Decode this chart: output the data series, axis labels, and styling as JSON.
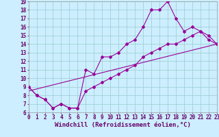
{
  "xlabel": "Windchill (Refroidissement éolien,°C)",
  "bg_color": "#cceeff",
  "grid_color": "#99cccc",
  "line_color": "#990099",
  "xmin": 0,
  "xmax": 23,
  "ymin": 6,
  "ymax": 19,
  "line1_x": [
    0,
    1,
    2,
    3,
    4,
    5,
    6,
    7,
    8,
    9,
    10,
    11,
    12,
    13,
    14,
    15,
    16,
    17,
    18,
    19,
    20,
    21,
    22,
    23
  ],
  "line1_y": [
    9,
    8,
    7.5,
    6.5,
    7,
    6.5,
    6.5,
    11,
    10.5,
    12.5,
    12.5,
    13,
    14,
    14.5,
    16,
    18,
    18,
    19,
    17,
    15.5,
    16,
    15.5,
    15,
    14
  ],
  "line2_x": [
    0,
    1,
    2,
    3,
    4,
    5,
    6,
    7,
    8,
    9,
    10,
    11,
    12,
    13,
    14,
    15,
    16,
    17,
    18,
    19,
    20,
    21,
    22,
    23
  ],
  "line2_y": [
    9,
    8,
    7.5,
    6.5,
    7,
    6.5,
    6.5,
    8.5,
    9.0,
    9.5,
    10,
    10.5,
    11,
    11.5,
    12.5,
    13,
    13.5,
    14,
    14,
    14.5,
    15,
    15.5,
    14.5,
    14
  ],
  "line3_x": [
    0,
    23
  ],
  "line3_y": [
    8.5,
    14
  ],
  "xticks": [
    0,
    1,
    2,
    3,
    4,
    5,
    6,
    7,
    8,
    9,
    10,
    11,
    12,
    13,
    14,
    15,
    16,
    17,
    18,
    19,
    20,
    21,
    22,
    23
  ],
  "yticks": [
    6,
    7,
    8,
    9,
    10,
    11,
    12,
    13,
    14,
    15,
    16,
    17,
    18,
    19
  ],
  "fontsize_label": 6.5,
  "fontsize_tick": 5.5
}
